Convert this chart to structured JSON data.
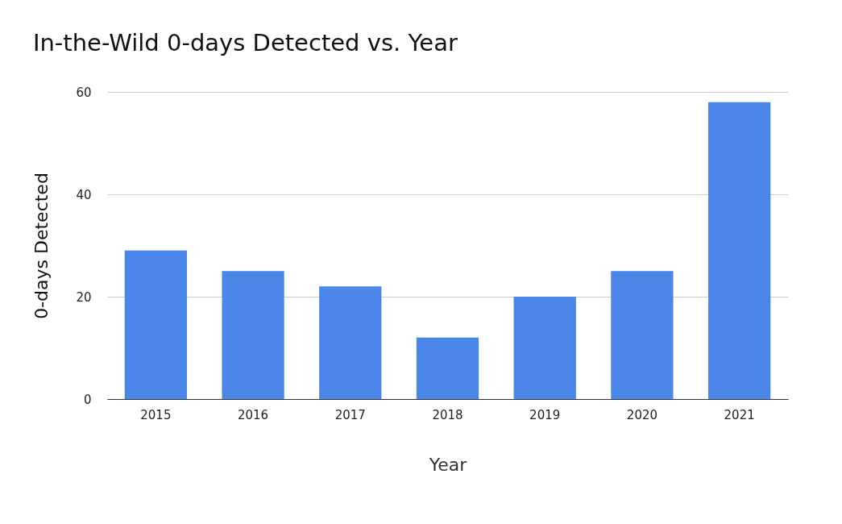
{
  "chart_data": {
    "type": "bar",
    "title": "In-the-Wild 0-days Detected vs. Year",
    "xlabel": "Year",
    "ylabel": "0-days Detected",
    "categories": [
      "2015",
      "2016",
      "2017",
      "2018",
      "2019",
      "2020",
      "2021"
    ],
    "values": [
      29,
      25,
      22,
      12,
      20,
      25,
      58
    ],
    "color": "#4a86e8",
    "ylim": [
      0,
      60
    ],
    "yticks": [
      0,
      20,
      40,
      60
    ],
    "grid": "y"
  }
}
